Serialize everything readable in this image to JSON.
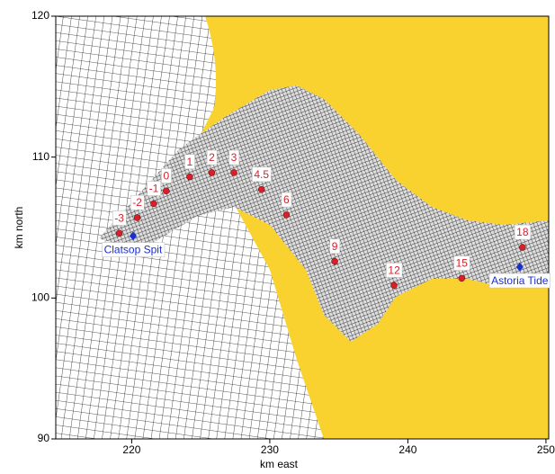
{
  "chart_data": {
    "type": "scatter",
    "xlabel": "km east",
    "ylabel": "km north",
    "xlim": [
      214.5,
      250.2
    ],
    "ylim": [
      90,
      120
    ],
    "xticks": [
      220,
      230,
      240,
      250
    ],
    "yticks": [
      90,
      100,
      110,
      120
    ],
    "labels": [
      "-3",
      "-2",
      "-1",
      "0",
      "1",
      "2",
      "3",
      "4.5",
      "6",
      "9",
      "12",
      "15",
      "18"
    ],
    "x": [
      219.1,
      220.4,
      221.6,
      222.5,
      224.2,
      225.8,
      227.4,
      229.4,
      231.2,
      234.7,
      239.0,
      243.9,
      248.3
    ],
    "y": [
      104.6,
      105.7,
      106.7,
      107.6,
      108.6,
      108.9,
      108.9,
      107.7,
      105.9,
      102.6,
      100.9,
      101.4,
      103.6
    ],
    "color": "#d8202a",
    "gauges": {
      "labels": [
        "Clatsop Spit",
        "Astoria Tide"
      ],
      "x": [
        220.1,
        248.1
      ],
      "y": [
        104.4,
        102.2
      ],
      "color": "#1a2fd0"
    }
  }
}
